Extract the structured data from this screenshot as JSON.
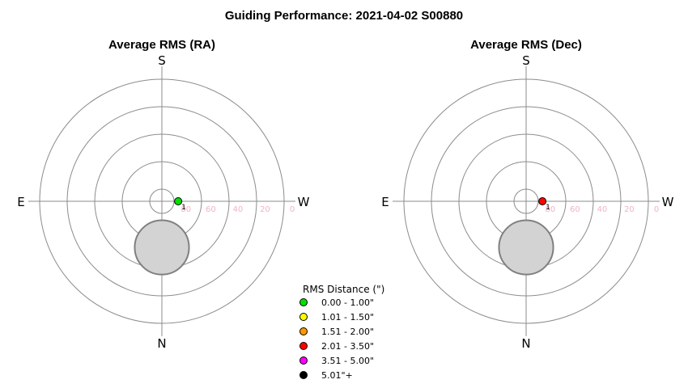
{
  "title": "Guiding Performance: 2021-04-02 S00880",
  "colors": {
    "ring": "#8c8c8c",
    "axis": "#8c8c8c",
    "obstruction_fill": "#d3d3d3",
    "obstruction_stroke": "#808080",
    "ring_label": "#f2b3c4"
  },
  "legend": {
    "title": "RMS Distance (\")",
    "items": [
      {
        "label": "0.00 - 1.00\"",
        "color": "#00e000"
      },
      {
        "label": "1.01 - 1.50\"",
        "color": "#ffff00"
      },
      {
        "label": "1.51 - 2.00\"",
        "color": "#ff9900"
      },
      {
        "label": "2.01 - 3.50\"",
        "color": "#ff0000"
      },
      {
        "label": "3.51 - 5.00\"",
        "color": "#ff00ff"
      },
      {
        "label": "5.01\"+",
        "color": "#000000"
      }
    ]
  },
  "chart_data": [
    {
      "type": "scatter",
      "projection": "polar",
      "title": "Average RMS (RA)",
      "directions": {
        "top": "S",
        "bottom": "N",
        "left": "E",
        "right": "W"
      },
      "r_axis": "altitude",
      "r_ticks": [
        80,
        60,
        40,
        20,
        0
      ],
      "r_range": [
        90,
        0
      ],
      "grid": true,
      "points": [
        {
          "label": "1",
          "azimuth_deg": 90,
          "altitude_deg": 78,
          "color": "#00e000"
        }
      ],
      "obstruction": {
        "azimuth_deg": 0,
        "center_altitude_deg": 56,
        "radius_deg": 20
      }
    },
    {
      "type": "scatter",
      "projection": "polar",
      "title": "Average RMS (Dec)",
      "directions": {
        "top": "S",
        "bottom": "N",
        "left": "E",
        "right": "W"
      },
      "r_axis": "altitude",
      "r_ticks": [
        80,
        60,
        40,
        20,
        0
      ],
      "r_range": [
        90,
        0
      ],
      "grid": true,
      "points": [
        {
          "label": "1",
          "azimuth_deg": 90,
          "altitude_deg": 78,
          "color": "#ff0000"
        }
      ],
      "obstruction": {
        "azimuth_deg": 0,
        "center_altitude_deg": 56,
        "radius_deg": 20
      }
    }
  ]
}
